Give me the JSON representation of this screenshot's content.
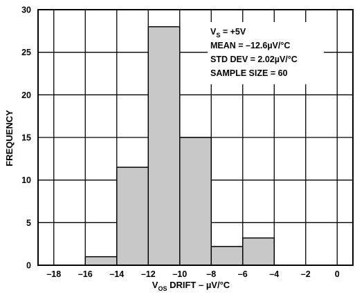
{
  "chart_data": {
    "type": "bar",
    "subtype": "histogram",
    "bin_edges": [
      -18,
      -16,
      -14,
      -12,
      -10,
      -8,
      -6,
      -4,
      -2,
      0
    ],
    "values": [
      0,
      1,
      11.5,
      28,
      15,
      2.2,
      3.2,
      0,
      0
    ],
    "xlim": [
      -19,
      1
    ],
    "ylim": [
      0,
      30
    ],
    "x_ticks": [
      -18,
      -16,
      -14,
      -12,
      -10,
      -8,
      -6,
      -4,
      -2,
      0
    ],
    "x_tick_labels": [
      "–18",
      "–16",
      "–14",
      "–12",
      "–10",
      "–8",
      "–6",
      "–4",
      "–2",
      "0"
    ],
    "y_ticks": [
      0,
      5,
      10,
      15,
      20,
      25,
      30
    ],
    "y_tick_labels": [
      "0",
      "5",
      "10",
      "15",
      "20",
      "25",
      "30"
    ],
    "grid": true,
    "bar_color": "#c8c8c8",
    "bar_edge_color": "#000000",
    "xlabel": {
      "main": "V",
      "sub": "OS",
      "rest": " DRIFT – µV/°C"
    },
    "ylabel": "FREQUENCY",
    "annotations": [
      {
        "main": "V",
        "sub": "S",
        "rest": " = +5V"
      },
      {
        "main": "MEAN = –12.6µV/°C",
        "sub": "",
        "rest": ""
      },
      {
        "main": "STD DEV = 2.02µV/°C",
        "sub": "",
        "rest": ""
      },
      {
        "main": "SAMPLE SIZE = 60",
        "sub": "",
        "rest": ""
      }
    ]
  }
}
